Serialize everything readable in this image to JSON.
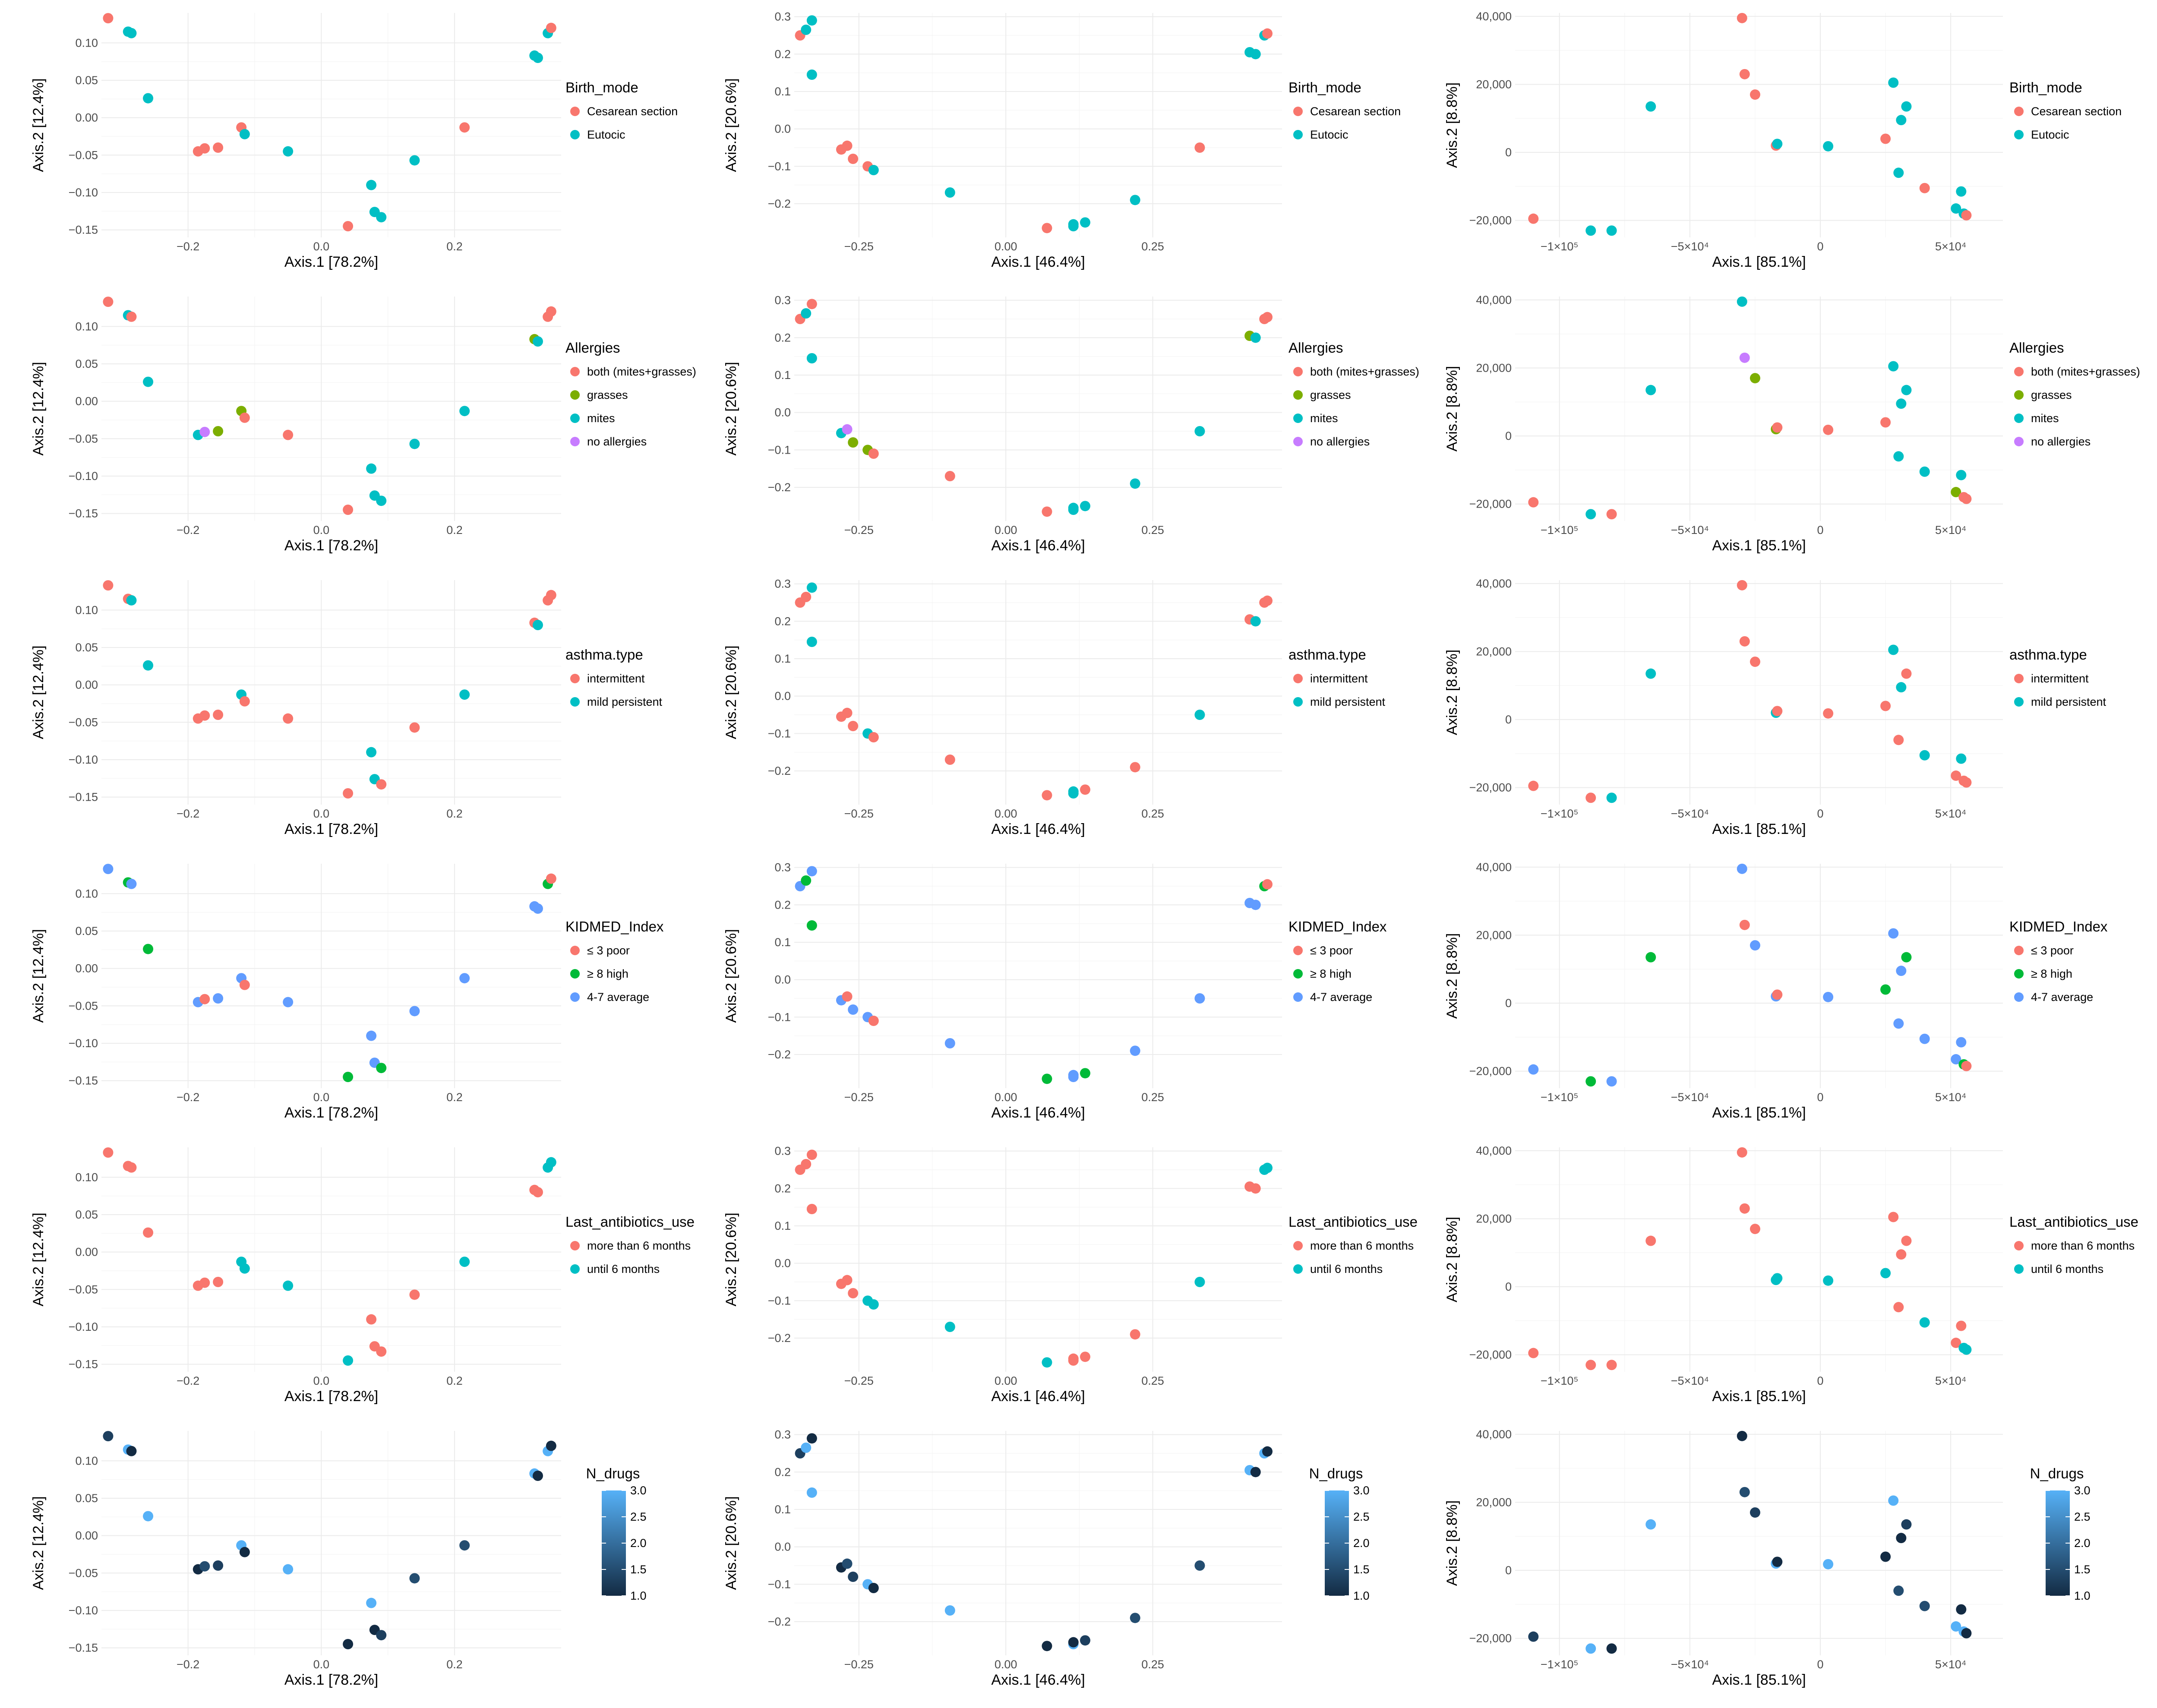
{
  "colors": {
    "two": [
      "#F8766D",
      "#00BFC4"
    ],
    "three": [
      "#F8766D",
      "#00BA38",
      "#619CFF"
    ],
    "four": [
      "#F8766D",
      "#7CAE00",
      "#00BFC4",
      "#C77CFF"
    ],
    "gradient_low": "#132B43",
    "gradient_high": "#56B1F7"
  },
  "axes": {
    "A": {
      "xlabel": "Axis.1   [78.2%]",
      "ylabel": "Axis.2   [12.4%]",
      "xlim": [
        -0.33,
        0.36
      ],
      "ylim": [
        -0.16,
        0.14
      ],
      "xticks": [
        -0.2,
        0.0,
        0.2
      ],
      "xtick_labels": [
        "−0.2",
        "0.0",
        "0.2"
      ],
      "yticks": [
        -0.15,
        -0.1,
        -0.05,
        0.0,
        0.05,
        0.1
      ],
      "ytick_labels": [
        "−0.15",
        "−0.10",
        "−0.05",
        "0.00",
        "0.05",
        "0.10"
      ]
    },
    "B": {
      "xlabel": "Axis.1   [46.4%]",
      "ylabel": "Axis.2   [20.6%]",
      "xlim": [
        -0.36,
        0.47
      ],
      "ylim": [
        -0.29,
        0.31
      ],
      "xticks": [
        -0.25,
        0.0,
        0.25
      ],
      "xtick_labels": [
        "−0.25",
        "0.00",
        "0.25"
      ],
      "yticks": [
        -0.2,
        -0.1,
        0.0,
        0.1,
        0.2,
        0.3
      ],
      "ytick_labels": [
        "−0.2",
        "−0.1",
        "0.0",
        "0.1",
        "0.2",
        "0.3"
      ]
    },
    "C": {
      "xlabel": "Axis.1   [85.1%]",
      "ylabel": "Axis.2   [8.8%]",
      "xlim": [
        -117000,
        70000
      ],
      "ylim": [
        -25000,
        41000
      ],
      "xticks": [
        -100000,
        -50000,
        0,
        50000
      ],
      "xtick_labels": [
        "−1×10⁵",
        "−5×10⁴",
        "0",
        "5×10⁴"
      ],
      "yticks": [
        -20000,
        0,
        20000,
        40000
      ],
      "ytick_labels": [
        "−20,000",
        "0",
        "20,000",
        "40,000"
      ]
    }
  },
  "rows": [
    {
      "variable": "Birth_mode",
      "kind": "discrete",
      "palette": "two",
      "levels": [
        "Cesarean section",
        "Eutocic"
      ]
    },
    {
      "variable": "Allergies",
      "kind": "discrete",
      "palette": "four",
      "levels": [
        "both (mites+grasses)",
        "grasses",
        "mites",
        "no allergies"
      ]
    },
    {
      "variable": "asthma.type",
      "kind": "discrete",
      "palette": "two",
      "levels": [
        "intermittent",
        "mild persistent"
      ]
    },
    {
      "variable": "KIDMED_Index",
      "kind": "discrete",
      "palette": "three",
      "levels": [
        "≤ 3 poor",
        "≥ 8 high",
        "4-7 average"
      ]
    },
    {
      "variable": "Last_antibiotics_use",
      "kind": "discrete",
      "palette": "two",
      "levels": [
        "more than 6 months",
        "until 6 months"
      ]
    },
    {
      "variable": "N_drugs",
      "kind": "continuous",
      "limits": [
        1,
        3
      ],
      "ticks": [
        1.0,
        1.5,
        2.0,
        2.5,
        3.0
      ],
      "tick_labels": [
        "1.0",
        "1.5",
        "2.0",
        "2.5",
        "3.0"
      ]
    }
  ],
  "chart_data": {
    "type": "scatter",
    "description_rows": "6 rows of variables, 3 ordinations per row (columns A, B, C); each sample shares coordinates across rows",
    "points_A": [
      [
        -0.32,
        0.133
      ],
      [
        -0.29,
        0.115
      ],
      [
        -0.285,
        0.113
      ],
      [
        -0.26,
        0.026
      ],
      [
        -0.185,
        -0.045
      ],
      [
        -0.175,
        -0.041
      ],
      [
        -0.155,
        -0.04
      ],
      [
        -0.12,
        -0.013
      ],
      [
        -0.115,
        -0.022
      ],
      [
        -0.05,
        -0.045
      ],
      [
        0.04,
        -0.145
      ],
      [
        0.075,
        -0.09
      ],
      [
        0.08,
        -0.126
      ],
      [
        0.09,
        -0.133
      ],
      [
        0.14,
        -0.057
      ],
      [
        0.215,
        -0.013
      ],
      [
        0.32,
        0.083
      ],
      [
        0.325,
        0.08
      ],
      [
        0.34,
        0.113
      ],
      [
        0.345,
        0.12
      ]
    ],
    "points_B": [
      [
        -0.35,
        0.25
      ],
      [
        -0.34,
        0.265
      ],
      [
        -0.33,
        0.29
      ],
      [
        -0.33,
        0.145
      ],
      [
        -0.28,
        -0.055
      ],
      [
        -0.27,
        -0.045
      ],
      [
        -0.26,
        -0.08
      ],
      [
        -0.235,
        -0.1
      ],
      [
        -0.225,
        -0.11
      ],
      [
        -0.095,
        -0.17
      ],
      [
        0.07,
        -0.265
      ],
      [
        0.115,
        -0.26
      ],
      [
        0.115,
        -0.255
      ],
      [
        0.135,
        -0.25
      ],
      [
        0.22,
        -0.19
      ],
      [
        0.33,
        -0.05
      ],
      [
        0.415,
        0.205
      ],
      [
        0.425,
        0.2
      ],
      [
        0.44,
        0.25
      ],
      [
        0.445,
        0.255
      ]
    ],
    "points_C": [
      [
        -110000,
        -19500
      ],
      [
        -88000,
        -23000
      ],
      [
        -80000,
        -23000
      ],
      [
        -65000,
        13500
      ],
      [
        -30000,
        39500
      ],
      [
        -29000,
        23000
      ],
      [
        -25000,
        17000
      ],
      [
        -17000,
        2000
      ],
      [
        -16500,
        2500
      ],
      [
        3000,
        1800
      ],
      [
        25000,
        4000
      ],
      [
        28000,
        20500
      ],
      [
        31000,
        9500
      ],
      [
        33000,
        13500
      ],
      [
        30000,
        -6000
      ],
      [
        40000,
        -10500
      ],
      [
        52000,
        -16500
      ],
      [
        54000,
        -11500
      ],
      [
        55000,
        -18000
      ],
      [
        56000,
        -18500
      ]
    ],
    "groups": {
      "Birth_mode": [
        "Cesarean section",
        "Eutocic",
        "Eutocic",
        "Eutocic",
        "Cesarean section",
        "Cesarean section",
        "Cesarean section",
        "Cesarean section",
        "Eutocic",
        "Eutocic",
        "Cesarean section",
        "Eutocic",
        "Eutocic",
        "Eutocic",
        "Eutocic",
        "Cesarean section",
        "Eutocic",
        "Eutocic",
        "Eutocic",
        "Cesarean section"
      ],
      "Allergies": [
        "both (mites+grasses)",
        "mites",
        "both (mites+grasses)",
        "mites",
        "mites",
        "no allergies",
        "grasses",
        "grasses",
        "both (mites+grasses)",
        "both (mites+grasses)",
        "both (mites+grasses)",
        "mites",
        "mites",
        "mites",
        "mites",
        "mites",
        "grasses",
        "mites",
        "both (mites+grasses)",
        "both (mites+grasses)"
      ],
      "asthma.type": [
        "intermittent",
        "intermittent",
        "mild persistent",
        "mild persistent",
        "intermittent",
        "intermittent",
        "intermittent",
        "mild persistent",
        "intermittent",
        "intermittent",
        "intermittent",
        "mild persistent",
        "mild persistent",
        "intermittent",
        "intermittent",
        "mild persistent",
        "intermittent",
        "mild persistent",
        "intermittent",
        "intermittent"
      ],
      "KIDMED_Index": [
        "4-7 average",
        "≥ 8 high",
        "4-7 average",
        "≥ 8 high",
        "4-7 average",
        "≤ 3 poor",
        "4-7 average",
        "4-7 average",
        "≤ 3 poor",
        "4-7 average",
        "≥ 8 high",
        "4-7 average",
        "4-7 average",
        "≥ 8 high",
        "4-7 average",
        "4-7 average",
        "4-7 average",
        "4-7 average",
        "≥ 8 high",
        "≤ 3 poor"
      ],
      "Last_antibiotics_use": [
        "more than 6 months",
        "more than 6 months",
        "more than 6 months",
        "more than 6 months",
        "more than 6 months",
        "more than 6 months",
        "more than 6 months",
        "until 6 months",
        "until 6 months",
        "until 6 months",
        "until 6 months",
        "more than 6 months",
        "more than 6 months",
        "more than 6 months",
        "more than 6 months",
        "until 6 months",
        "more than 6 months",
        "more than 6 months",
        "until 6 months",
        "until 6 months"
      ],
      "N_drugs": [
        1.3,
        3.0,
        1.0,
        3.0,
        1.0,
        1.5,
        1.3,
        3.0,
        1.0,
        3.0,
        1.0,
        3.0,
        1.0,
        1.3,
        1.5,
        1.5,
        3.0,
        1.0,
        3.0,
        1.0
      ]
    }
  }
}
